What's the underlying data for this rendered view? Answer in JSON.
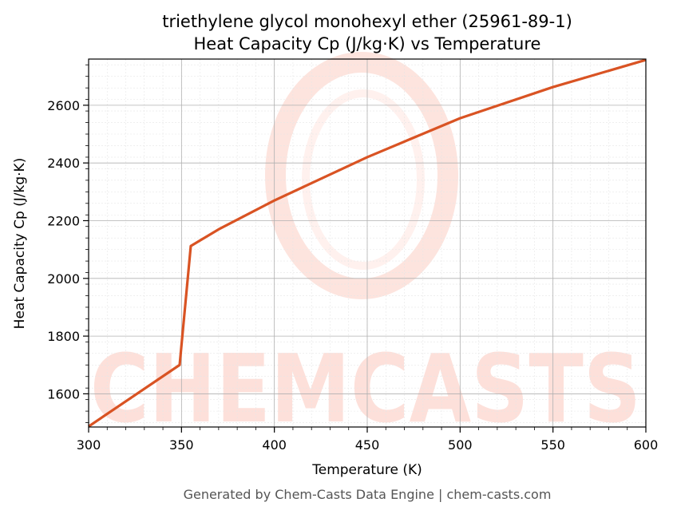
{
  "chart_data": {
    "type": "line",
    "title_line1": "triethylene glycol monohexyl ether (25961-89-1)",
    "title_line2": "Heat Capacity Cp (J/kg·K) vs Temperature",
    "xlabel": "Temperature (K)",
    "ylabel": "Heat Capacity Cp (J/kg·K)",
    "xlim": [
      300,
      600
    ],
    "ylim": [
      1485,
      2760
    ],
    "x_ticks": [
      300,
      350,
      400,
      450,
      500,
      550,
      600
    ],
    "y_ticks": [
      1600,
      1800,
      2000,
      2200,
      2400,
      2600
    ],
    "grid": true,
    "series": [
      {
        "color": "#d95323",
        "x": [
          300,
          349,
          355,
          370,
          400,
          450,
          500,
          550,
          600
        ],
        "y": [
          1487,
          1700,
          2112,
          2170,
          2270,
          2420,
          2555,
          2663,
          2757
        ]
      }
    ]
  },
  "watermark": {
    "text": "CHEMCASTS",
    "color": "#fde0da"
  },
  "footer": "Generated by Chem-Casts Data Engine | chem-casts.com"
}
